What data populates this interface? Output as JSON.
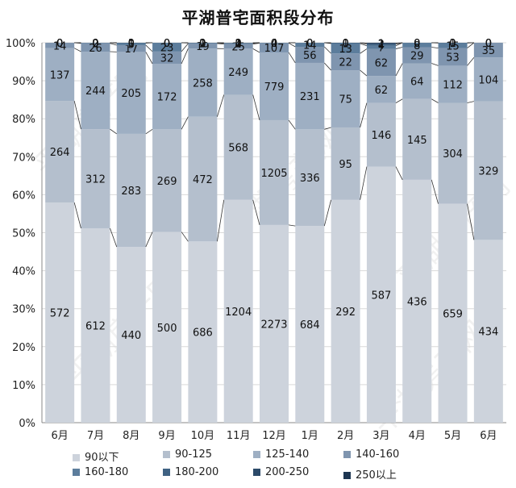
{
  "title": "平湖普宅面积段分布",
  "watermark": "平湖房产网",
  "chart_data": {
    "type": "bar",
    "stacked": "percent",
    "title": "平湖普宅面积段分布",
    "categories": [
      "6月",
      "7月",
      "8月",
      "9月",
      "10月",
      "11月",
      "12月",
      "1月",
      "2月",
      "3月",
      "4月",
      "5月",
      "6月"
    ],
    "ylim": [
      0,
      100
    ],
    "yticks": [
      "0%",
      "10%",
      "20%",
      "30%",
      "40%",
      "50%",
      "60%",
      "70%",
      "80%",
      "90%",
      "100%"
    ],
    "legend_position": "bottom",
    "series": [
      {
        "name": "90以下",
        "color": "#cdd3dc",
        "values": [
          572,
          612,
          440,
          500,
          686,
          1204,
          2273,
          684,
          292,
          587,
          436,
          659,
          434
        ]
      },
      {
        "name": "90-125",
        "color": "#b4bfcd",
        "values": [
          264,
          312,
          283,
          269,
          472,
          568,
          1205,
          336,
          95,
          146,
          145,
          304,
          329
        ]
      },
      {
        "name": "125-140",
        "color": "#9eafc3",
        "values": [
          137,
          244,
          205,
          172,
          258,
          249,
          779,
          231,
          75,
          62,
          64,
          112,
          104
        ]
      },
      {
        "name": "140-160",
        "color": "#7f95af",
        "values": [
          14,
          26,
          17,
          32,
          19,
          25,
          107,
          56,
          22,
          62,
          29,
          53,
          35
        ]
      },
      {
        "name": "160-180",
        "color": "#5c7d9c",
        "values": [
          0,
          2,
          5,
          23,
          2,
          4,
          4,
          14,
          13,
          7,
          8,
          15,
          0
        ]
      },
      {
        "name": "180-200",
        "color": "#3f6283",
        "values": [
          0,
          0,
          1,
          0,
          1,
          2,
          0,
          0,
          1,
          4,
          0,
          1,
          0
        ]
      },
      {
        "name": "200-250",
        "color": "#2c4a69",
        "values": [
          0,
          0,
          0,
          0,
          0,
          1,
          0,
          0,
          0,
          2,
          0,
          0,
          0
        ]
      },
      {
        "name": "250以上",
        "color": "#1d3551",
        "values": [
          0,
          0,
          0,
          0,
          0,
          0,
          0,
          0,
          0,
          1,
          0,
          0,
          0
        ]
      }
    ]
  }
}
